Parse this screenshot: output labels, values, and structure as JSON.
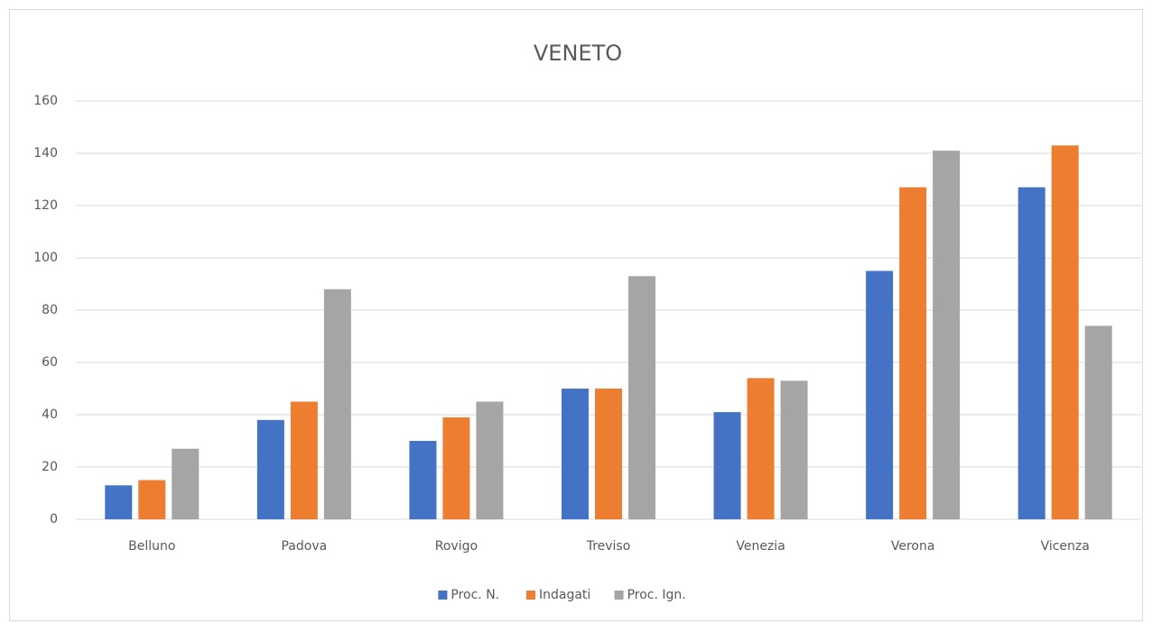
{
  "chart_data": {
    "type": "bar",
    "title": "VENETO",
    "categories": [
      "Belluno",
      "Padova",
      "Rovigo",
      "Treviso",
      "Venezia",
      "Verona",
      "Vicenza"
    ],
    "series": [
      {
        "name": "Proc. N.",
        "color": "#4472c4",
        "values": [
          13,
          38,
          30,
          50,
          41,
          95,
          127
        ]
      },
      {
        "name": "Indagati",
        "color": "#ed7d31",
        "values": [
          15,
          45,
          39,
          50,
          54,
          127,
          143
        ]
      },
      {
        "name": "Proc. Ign.",
        "color": "#a5a5a5",
        "values": [
          27,
          88,
          45,
          93,
          53,
          141,
          74
        ]
      }
    ],
    "ylim": [
      0,
      160
    ],
    "yticks": [
      0,
      20,
      40,
      60,
      80,
      100,
      120,
      140,
      160
    ],
    "grid": true,
    "legend": "bottom"
  }
}
